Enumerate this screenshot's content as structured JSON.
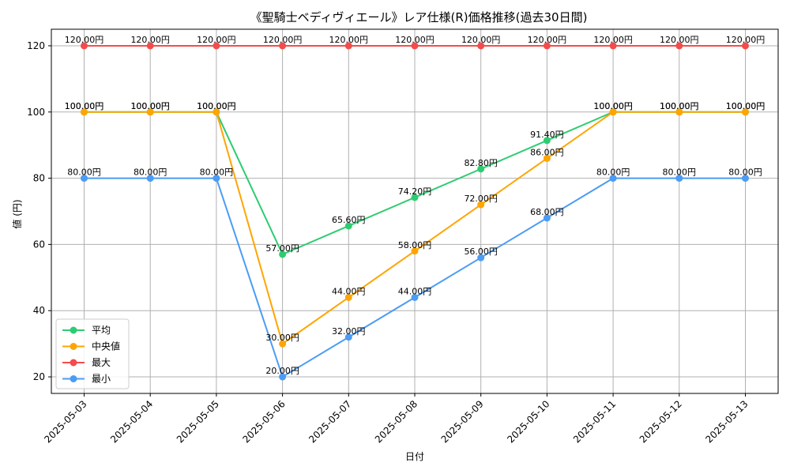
{
  "chart_data": {
    "type": "line",
    "title": "《聖騎士ベディヴィエール》レア仕様(R)価格推移(過去30日間)",
    "xlabel": "日付",
    "ylabel": "値 (円)",
    "categories": [
      "2025-05-03",
      "2025-05-04",
      "2025-05-05",
      "2025-05-06",
      "2025-05-07",
      "2025-05-08",
      "2025-05-09",
      "2025-05-10",
      "2025-05-11",
      "2025-05-12",
      "2025-05-13"
    ],
    "ylim": [
      15,
      125
    ],
    "yticks": [
      20,
      40,
      60,
      80,
      100,
      120
    ],
    "grid": true,
    "legend_position": "lower-left",
    "value_suffix": "円",
    "series": [
      {
        "name": "平均",
        "color": "#2ecc71",
        "values": [
          100,
          100,
          100,
          57,
          65.6,
          74.2,
          82.8,
          91.4,
          100,
          100,
          100
        ]
      },
      {
        "name": "中央値",
        "color": "#ffa500",
        "values": [
          100,
          100,
          100,
          30,
          44,
          58,
          72,
          86,
          100,
          100,
          100
        ]
      },
      {
        "name": "最大",
        "color": "#f44b4b",
        "values": [
          120,
          120,
          120,
          120,
          120,
          120,
          120,
          120,
          120,
          120,
          120
        ]
      },
      {
        "name": "最小",
        "color": "#4b9cf4",
        "values": [
          80,
          80,
          80,
          20,
          32,
          44,
          56,
          68,
          80,
          80,
          80
        ]
      }
    ]
  }
}
